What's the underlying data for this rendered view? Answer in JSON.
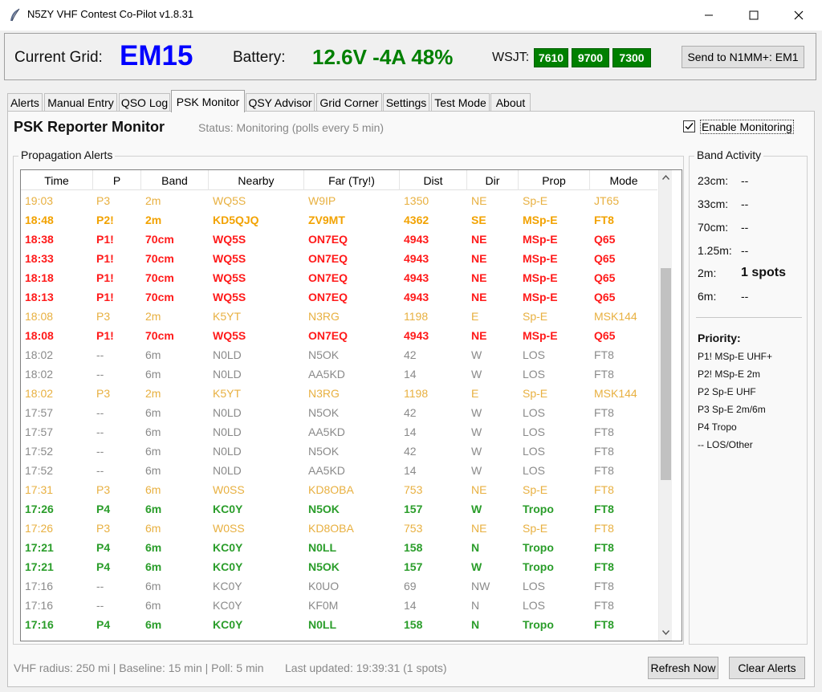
{
  "window": {
    "title": "N5ZY VHF Contest Co-Pilot v1.8.31"
  },
  "header": {
    "grid_label": "Current Grid:",
    "grid_value": "EM15",
    "battery_label": "Battery:",
    "battery_value": "12.6V -4A 48%",
    "wsjt_label": "WSJT:",
    "wsjt_badges": [
      "7610",
      "9700",
      "7300"
    ],
    "send_button": "Send to N1MM+: EM1",
    "colors": {
      "grid": "#0000ff",
      "battery": "#008000",
      "wsjt_badge": "#008000"
    }
  },
  "tabs": [
    {
      "label": "Alerts",
      "active": false
    },
    {
      "label": "Manual Entry",
      "active": false
    },
    {
      "label": "QSO Log",
      "active": false
    },
    {
      "label": "PSK Monitor",
      "active": true
    },
    {
      "label": "QSY Advisor",
      "active": false
    },
    {
      "label": "Grid Corner",
      "active": false
    },
    {
      "label": "Settings",
      "active": false
    },
    {
      "label": "Test Mode",
      "active": false
    },
    {
      "label": "About",
      "active": false
    }
  ],
  "psk": {
    "title": "PSK Reporter Monitor",
    "status": "Status: Monitoring (polls every 5 min)",
    "enable_label": "Enable Monitoring",
    "enable_checked": true,
    "alerts_group_title": "Propagation Alerts",
    "columns": [
      "Time",
      "P",
      "Band",
      "Nearby",
      "Far (Try!)",
      "Dist",
      "Dir",
      "Prop",
      "Mode"
    ],
    "rows": [
      {
        "sev": "p3",
        "cells": [
          "19:03",
          "P3",
          "2m",
          "WQ5S",
          "W9IP",
          "1350",
          "NE",
          "Sp-E",
          "JT65"
        ]
      },
      {
        "sev": "p2",
        "cells": [
          "18:48",
          "P2!",
          "2m",
          "KD5QJQ",
          "ZV9MT",
          "4362",
          "SE",
          "MSp-E",
          "FT8"
        ]
      },
      {
        "sev": "p1",
        "cells": [
          "18:38",
          "P1!",
          "70cm",
          "WQ5S",
          "ON7EQ",
          "4943",
          "NE",
          "MSp-E",
          "Q65"
        ]
      },
      {
        "sev": "p1",
        "cells": [
          "18:33",
          "P1!",
          "70cm",
          "WQ5S",
          "ON7EQ",
          "4943",
          "NE",
          "MSp-E",
          "Q65"
        ]
      },
      {
        "sev": "p1",
        "cells": [
          "18:18",
          "P1!",
          "70cm",
          "WQ5S",
          "ON7EQ",
          "4943",
          "NE",
          "MSp-E",
          "Q65"
        ]
      },
      {
        "sev": "p1",
        "cells": [
          "18:13",
          "P1!",
          "70cm",
          "WQ5S",
          "ON7EQ",
          "4943",
          "NE",
          "MSp-E",
          "Q65"
        ]
      },
      {
        "sev": "p3",
        "cells": [
          "18:08",
          "P3",
          "2m",
          "K5YT",
          "N3RG",
          "1198",
          "E",
          "Sp-E",
          "MSK144"
        ]
      },
      {
        "sev": "p1",
        "cells": [
          "18:08",
          "P1!",
          "70cm",
          "WQ5S",
          "ON7EQ",
          "4943",
          "NE",
          "MSp-E",
          "Q65"
        ]
      },
      {
        "sev": "none",
        "cells": [
          "18:02",
          "--",
          "6m",
          "N0LD",
          "N5OK",
          "42",
          "W",
          "LOS",
          "FT8"
        ]
      },
      {
        "sev": "none",
        "cells": [
          "18:02",
          "--",
          "6m",
          "N0LD",
          "AA5KD",
          "14",
          "W",
          "LOS",
          "FT8"
        ]
      },
      {
        "sev": "p3",
        "cells": [
          "18:02",
          "P3",
          "2m",
          "K5YT",
          "N3RG",
          "1198",
          "E",
          "Sp-E",
          "MSK144"
        ]
      },
      {
        "sev": "none",
        "cells": [
          "17:57",
          "--",
          "6m",
          "N0LD",
          "N5OK",
          "42",
          "W",
          "LOS",
          "FT8"
        ]
      },
      {
        "sev": "none",
        "cells": [
          "17:57",
          "--",
          "6m",
          "N0LD",
          "AA5KD",
          "14",
          "W",
          "LOS",
          "FT8"
        ]
      },
      {
        "sev": "none",
        "cells": [
          "17:52",
          "--",
          "6m",
          "N0LD",
          "N5OK",
          "42",
          "W",
          "LOS",
          "FT8"
        ]
      },
      {
        "sev": "none",
        "cells": [
          "17:52",
          "--",
          "6m",
          "N0LD",
          "AA5KD",
          "14",
          "W",
          "LOS",
          "FT8"
        ]
      },
      {
        "sev": "p3",
        "cells": [
          "17:31",
          "P3",
          "6m",
          "W0SS",
          "KD8OBA",
          "753",
          "NE",
          "Sp-E",
          "FT8"
        ]
      },
      {
        "sev": "p4",
        "cells": [
          "17:26",
          "P4",
          "6m",
          "KC0Y",
          "N5OK",
          "157",
          "W",
          "Tropo",
          "FT8"
        ]
      },
      {
        "sev": "p3",
        "cells": [
          "17:26",
          "P3",
          "6m",
          "W0SS",
          "KD8OBA",
          "753",
          "NE",
          "Sp-E",
          "FT8"
        ]
      },
      {
        "sev": "p4",
        "cells": [
          "17:21",
          "P4",
          "6m",
          "KC0Y",
          "N0LL",
          "158",
          "N",
          "Tropo",
          "FT8"
        ]
      },
      {
        "sev": "p4",
        "cells": [
          "17:21",
          "P4",
          "6m",
          "KC0Y",
          "N5OK",
          "157",
          "W",
          "Tropo",
          "FT8"
        ]
      },
      {
        "sev": "none",
        "cells": [
          "17:16",
          "--",
          "6m",
          "KC0Y",
          "K0UO",
          "69",
          "NW",
          "LOS",
          "FT8"
        ]
      },
      {
        "sev": "none",
        "cells": [
          "17:16",
          "--",
          "6m",
          "KC0Y",
          "KF0M",
          "14",
          "N",
          "LOS",
          "FT8"
        ]
      },
      {
        "sev": "p4",
        "cells": [
          "17:16",
          "P4",
          "6m",
          "KC0Y",
          "N0LL",
          "158",
          "N",
          "Tropo",
          "FT8"
        ]
      }
    ],
    "severity_colors": {
      "p1": "#ff1a1a",
      "p2": "#f2a200",
      "p3": "#e8b040",
      "p4": "#2a9d2a",
      "none": "#8a8a8a"
    }
  },
  "band_activity": {
    "title": "Band Activity",
    "bands": [
      {
        "label": "23cm:",
        "value": "--",
        "bold": false
      },
      {
        "label": "33cm:",
        "value": "--",
        "bold": false
      },
      {
        "label": "70cm:",
        "value": "--",
        "bold": false
      },
      {
        "label": "1.25m:",
        "value": "--",
        "bold": false
      },
      {
        "label": "2m:",
        "value": "1 spots",
        "bold": true
      },
      {
        "label": "6m:",
        "value": "--",
        "bold": false
      }
    ],
    "priority_title": "Priority:",
    "priority_lines": [
      "P1! MSp-E UHF+",
      "P2! MSp-E 2m",
      "P2  Sp-E UHF",
      "P3  Sp-E 2m/6m",
      "P4  Tropo",
      "--  LOS/Other"
    ]
  },
  "footer": {
    "info": "VHF radius: 250 mi | Baseline: 15 min | Poll: 5 min",
    "updated": "Last updated: 19:39:31 (1 spots)",
    "refresh_button": "Refresh Now",
    "clear_button": "Clear Alerts"
  }
}
